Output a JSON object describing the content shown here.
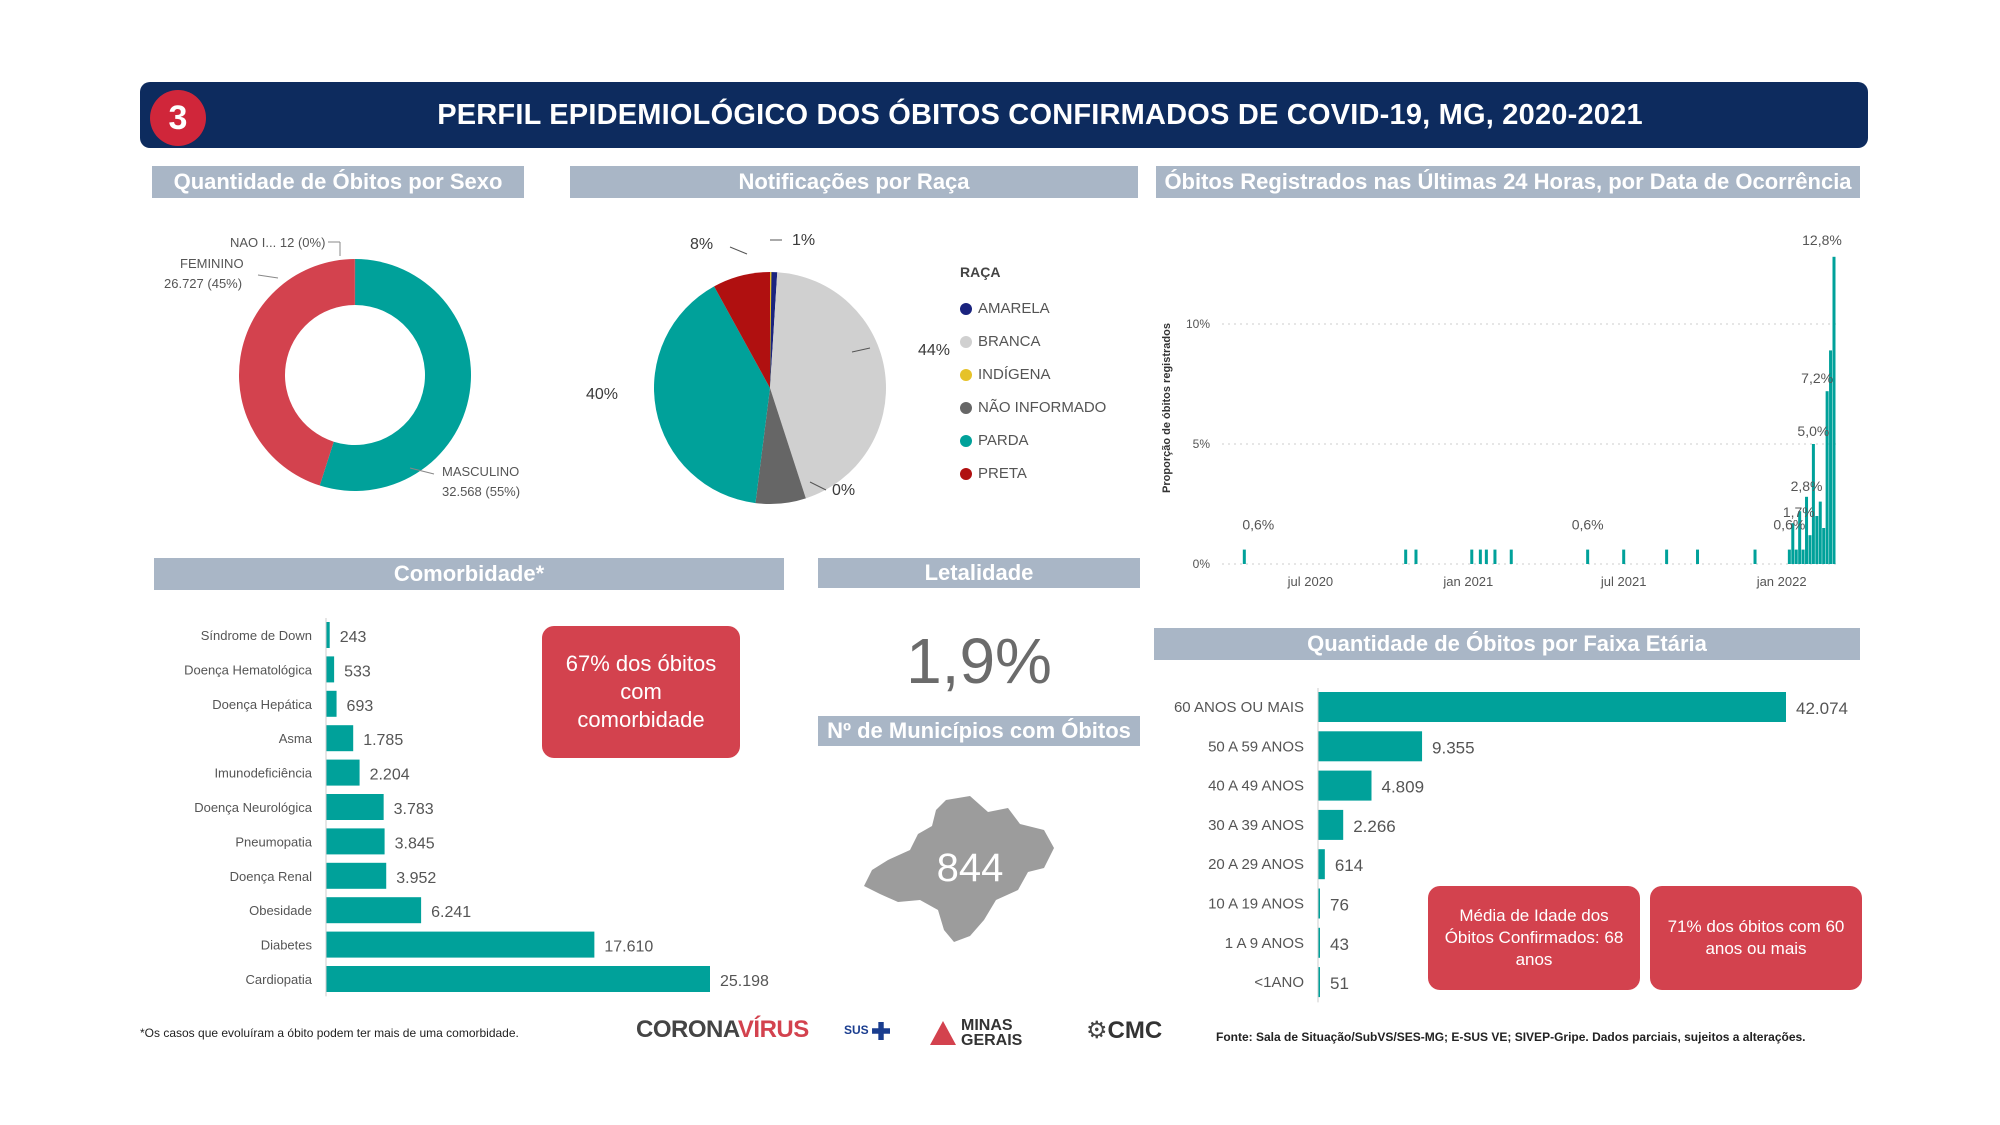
{
  "header": {
    "number": "3",
    "title": "PERFIL EPIDEMIOLÓGICO DOS ÓBITOS CONFIRMADOS DE COVID-19, MG, 2020-2021"
  },
  "sections": {
    "sexo": "Quantidade de Óbitos por Sexo",
    "raca": "Notificações por Raça",
    "ultimas24h": "Óbitos Registrados nas Últimas 24 Horas, por Data de Ocorrência",
    "comorbidade": "Comorbidade*",
    "letalidade": "Letalidade",
    "municipios": "Nº de Municípios com Óbitos",
    "faixa": "Quantidade de Óbitos por Faixa Etária"
  },
  "letalidade_value": "1,9%",
  "municipios_value": "844",
  "comorbidade_box": "67% dos óbitos com comorbidade",
  "idade_box": "Média de Idade dos Óbitos Confirmados: 68 anos",
  "sessenta_box": "71% dos óbitos com 60 anos ou mais",
  "footnote": "*Os casos que evoluíram a óbito podem ter mais de uma comorbidade.",
  "source": "Fonte: Sala de Situação/SubVS/SES-MG; E-SUS VE; SIVEP-Gripe. Dados parciais, sujeitos a alterações.",
  "logos": {
    "corona": "CORONA",
    "virus": "VÍRUS",
    "sus": "SUS",
    "minas": "MINAS GERAIS",
    "cmc": "CMC"
  },
  "colors": {
    "teal": "#00a19a",
    "red": "#d3424e",
    "navy": "#0d2b5e",
    "gray": "#a9b6c6"
  },
  "chart_data": [
    {
      "id": "sexo",
      "type": "pie",
      "slices": [
        {
          "name": "MASCULINO",
          "value": 32568,
          "label_value": "32.568",
          "pct": "55%",
          "color": "#00a19a"
        },
        {
          "name": "FEMININO",
          "value": 26727,
          "label_value": "26.727",
          "pct": "45%",
          "color": "#d3424e"
        },
        {
          "name": "NAO I...",
          "value": 12,
          "label_value": "12",
          "pct": "0%",
          "color": "#777777"
        }
      ]
    },
    {
      "id": "raca",
      "type": "pie",
      "legend_title": "RAÇA",
      "slices": [
        {
          "name": "AMARELA",
          "pct": 1,
          "label": "1%",
          "color": "#1a237e"
        },
        {
          "name": "BRANCA",
          "pct": 44,
          "label": "44%",
          "color": "#d0d0d0"
        },
        {
          "name": "INDÍGENA",
          "pct": 0,
          "label": "0%",
          "color": "#e6c229"
        },
        {
          "name": "NÃO INFORMADO",
          "pct": 7,
          "label": "",
          "color": "#666666"
        },
        {
          "name": "PARDA",
          "pct": 40,
          "label": "40%",
          "color": "#00a19a"
        },
        {
          "name": "PRETA",
          "pct": 8,
          "label": "8%",
          "color": "#b01010"
        }
      ]
    },
    {
      "id": "ultimas24h",
      "type": "bar",
      "ylabel": "Proporção de óbitos registrados",
      "yticks": [
        "0%",
        "5%",
        "10%"
      ],
      "xticks": [
        "jul 2020",
        "jan 2021",
        "jul 2021",
        "jan 2022"
      ],
      "annotations": [
        "12,8%",
        "7,2%",
        "5,0%",
        "2,8%",
        "1,7%",
        "0,6%",
        "0,6%",
        "0,6%"
      ],
      "x": [
        "2020-04-15",
        "2020-10-20",
        "2020-11-01",
        "2021-01-05",
        "2021-01-15",
        "2021-01-22",
        "2021-02-01",
        "2021-02-20",
        "2021-05-20",
        "2021-07-01",
        "2021-08-20",
        "2021-09-25",
        "2021-12-01",
        "2022-01-10",
        "2022-01-14",
        "2022-01-18",
        "2022-01-22",
        "2022-01-26",
        "2022-01-30",
        "2022-02-03",
        "2022-02-07",
        "2022-02-11",
        "2022-02-15",
        "2022-02-19",
        "2022-02-23",
        "2022-02-27",
        "2022-03-03"
      ],
      "y": [
        0.6,
        0.6,
        0.6,
        0.6,
        0.6,
        0.6,
        0.6,
        0.6,
        0.6,
        0.6,
        0.6,
        0.6,
        0.6,
        0.6,
        1.7,
        0.6,
        2.2,
        0.6,
        2.8,
        1.2,
        5.0,
        2.0,
        2.6,
        1.5,
        7.2,
        8.9,
        12.8
      ],
      "ylim": [
        0,
        13
      ]
    },
    {
      "id": "comorbidade",
      "type": "bar",
      "orientation": "horizontal",
      "categories": [
        "Síndrome de Down",
        "Doença Hematológica",
        "Doença Hepática",
        "Asma",
        "Imunodeficiência",
        "Doença Neurológica",
        "Pneumopatia",
        "Doença Renal",
        "Obesidade",
        "Diabetes",
        "Cardiopatia"
      ],
      "values": [
        243,
        533,
        693,
        1785,
        2204,
        3783,
        3845,
        3952,
        6241,
        17610,
        25198
      ],
      "labels": [
        "243",
        "533",
        "693",
        "1.785",
        "2.204",
        "3.783",
        "3.845",
        "3.952",
        "6.241",
        "17.610",
        "25.198"
      ]
    },
    {
      "id": "faixa",
      "type": "bar",
      "orientation": "horizontal",
      "categories": [
        "60 ANOS OU MAIS",
        "50 A 59 ANOS",
        "40 A 49 ANOS",
        "30 A 39 ANOS",
        "20 A 29 ANOS",
        "10 A 19 ANOS",
        "1 A 9 ANOS",
        "<1ANO"
      ],
      "values": [
        42074,
        9355,
        4809,
        2266,
        614,
        76,
        43,
        51
      ],
      "labels": [
        "42.074",
        "9.355",
        "4.809",
        "2.266",
        "614",
        "76",
        "43",
        "51"
      ]
    }
  ]
}
